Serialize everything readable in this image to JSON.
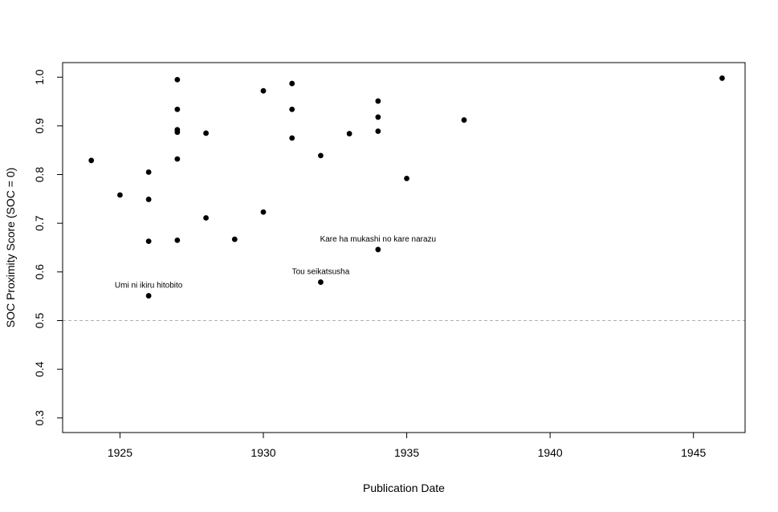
{
  "chart_data": {
    "type": "scatter",
    "title": "",
    "xlabel": "Publication Date",
    "ylabel": "SOC Proximity Score (SOC = 0)",
    "xlim": [
      1923,
      1946.8
    ],
    "ylim": [
      0.27,
      1.03
    ],
    "x_ticks": [
      1925,
      1930,
      1935,
      1940,
      1945
    ],
    "y_ticks": [
      0.3,
      0.4,
      0.5,
      0.6,
      0.7,
      0.8,
      0.9,
      1.0
    ],
    "x_tick_labels": [
      "1925",
      "1930",
      "1935",
      "1940",
      "1945"
    ],
    "y_tick_labels": [
      "0.3",
      "0.4",
      "0.5",
      "0.6",
      "0.7",
      "0.8",
      "0.9",
      "1.0"
    ],
    "reference_line": {
      "y": 0.5,
      "style": "dashed",
      "color": "#b0b0b0"
    },
    "grid": false,
    "point_color": "#000000",
    "points": [
      {
        "x": 1924,
        "y": 0.829
      },
      {
        "x": 1925,
        "y": 0.758
      },
      {
        "x": 1926,
        "y": 0.805
      },
      {
        "x": 1926,
        "y": 0.749
      },
      {
        "x": 1926,
        "y": 0.663
      },
      {
        "x": 1926,
        "y": 0.551
      },
      {
        "x": 1927,
        "y": 0.995
      },
      {
        "x": 1927,
        "y": 0.934
      },
      {
        "x": 1927,
        "y": 0.892
      },
      {
        "x": 1927,
        "y": 0.887
      },
      {
        "x": 1927,
        "y": 0.832
      },
      {
        "x": 1927,
        "y": 0.665
      },
      {
        "x": 1928,
        "y": 0.885
      },
      {
        "x": 1928,
        "y": 0.711
      },
      {
        "x": 1929,
        "y": 0.667
      },
      {
        "x": 1930,
        "y": 0.972
      },
      {
        "x": 1930,
        "y": 0.723
      },
      {
        "x": 1931,
        "y": 0.987
      },
      {
        "x": 1931,
        "y": 0.934
      },
      {
        "x": 1931,
        "y": 0.875
      },
      {
        "x": 1932,
        "y": 0.839
      },
      {
        "x": 1932,
        "y": 0.579
      },
      {
        "x": 1933,
        "y": 0.884
      },
      {
        "x": 1934,
        "y": 0.951
      },
      {
        "x": 1934,
        "y": 0.918
      },
      {
        "x": 1934,
        "y": 0.889
      },
      {
        "x": 1934,
        "y": 0.646
      },
      {
        "x": 1935,
        "y": 0.792
      },
      {
        "x": 1937,
        "y": 0.912
      },
      {
        "x": 1946,
        "y": 0.998
      }
    ],
    "annotations": [
      {
        "text": "Umi ni ikiru hitobito",
        "x": 1926,
        "y": 0.551
      },
      {
        "text": "Tou seikatsusha",
        "x": 1932,
        "y": 0.579
      },
      {
        "text": "Kare ha mukashi no kare narazu",
        "x": 1934,
        "y": 0.646
      }
    ]
  }
}
